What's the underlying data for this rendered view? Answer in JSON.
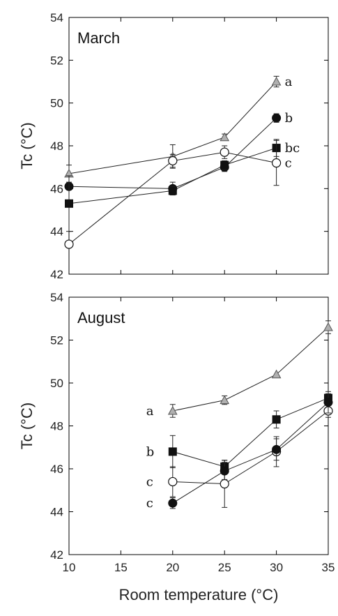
{
  "chart_data": {
    "type": "scatter",
    "shared_x_label": "Room temperature (°C)",
    "x_ticks": [
      "10",
      "15",
      "20",
      "25",
      "30",
      "35"
    ],
    "xlim": [
      10,
      35
    ],
    "panels": [
      {
        "title": "March",
        "ylabel": "Tc (°C)",
        "ylim": [
          42,
          54
        ],
        "y_ticks": [
          "42",
          "44",
          "46",
          "48",
          "50",
          "52",
          "54"
        ],
        "series": [
          {
            "marker": "triangle",
            "color": "#b0b0b0",
            "x": [
              10,
              20,
              25,
              30
            ],
            "y": [
              46.7,
              47.5,
              48.4,
              51.0
            ],
            "err": [
              0.4,
              0.55,
              0.15,
              0.25
            ],
            "label": "a"
          },
          {
            "marker": "circle-filled",
            "color": "#111111",
            "x": [
              10,
              20,
              25,
              30
            ],
            "y": [
              46.1,
              46.0,
              47.0,
              49.3
            ],
            "err": [
              0.0,
              0.3,
              0.2,
              0.2
            ],
            "label": "b"
          },
          {
            "marker": "square",
            "color": "#111111",
            "x": [
              10,
              20,
              25,
              30
            ],
            "y": [
              45.3,
              45.9,
              47.1,
              47.9
            ],
            "err": [
              1.3,
              0.2,
              0.2,
              0.4
            ],
            "label": "bc"
          },
          {
            "marker": "circle-open",
            "color": "#ffffff",
            "x": [
              10,
              20,
              25,
              30
            ],
            "y": [
              43.4,
              47.3,
              47.7,
              47.2
            ],
            "err": [
              0.0,
              0.3,
              0.3,
              1.05
            ],
            "label": "c"
          }
        ]
      },
      {
        "title": "August",
        "ylabel": "Tc (°C)",
        "ylim": [
          42,
          54
        ],
        "y_ticks": [
          "42",
          "44",
          "46",
          "48",
          "50",
          "52",
          "54"
        ],
        "series": [
          {
            "marker": "triangle",
            "color": "#b0b0b0",
            "x": [
              20,
              25,
              30,
              35
            ],
            "y": [
              48.7,
              49.2,
              50.4,
              52.6
            ],
            "err": [
              0.3,
              0.2,
              0.0,
              0.3
            ],
            "label": "a"
          },
          {
            "marker": "square",
            "color": "#111111",
            "x": [
              20,
              25,
              30,
              35
            ],
            "y": [
              46.8,
              46.1,
              48.3,
              49.3
            ],
            "err": [
              0.75,
              0.3,
              0.4,
              0.2
            ],
            "label": "b"
          },
          {
            "marker": "circle-open",
            "color": "#ffffff",
            "x": [
              20,
              25,
              30,
              35
            ],
            "y": [
              45.4,
              45.3,
              46.8,
              48.7
            ],
            "err": [
              0.7,
              1.1,
              0.7,
              0.3
            ],
            "label": "c"
          },
          {
            "marker": "circle-filled",
            "color": "#111111",
            "x": [
              20,
              25,
              30,
              35
            ],
            "y": [
              44.4,
              45.9,
              46.9,
              49.1
            ],
            "err": [
              0.25,
              0.4,
              0.5,
              0.5
            ],
            "label": "c"
          }
        ]
      }
    ]
  }
}
